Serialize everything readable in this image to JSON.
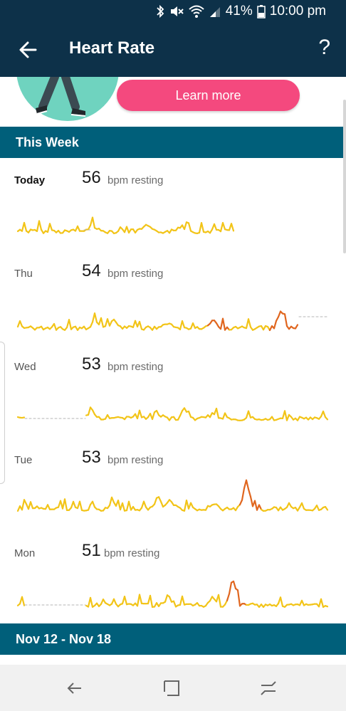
{
  "status_bar": {
    "battery": "41%",
    "time": "10:00 pm",
    "icons": [
      "bluetooth-icon",
      "mute-icon",
      "wifi-icon",
      "signal-icon",
      "battery-icon"
    ]
  },
  "app_bar": {
    "title": "Heart Rate",
    "help": "?"
  },
  "promo": {
    "button_label": "Learn more"
  },
  "this_week": {
    "header": "This Week",
    "days": [
      {
        "label": "Today",
        "bpm": "56",
        "unit": "bpm resting"
      },
      {
        "label": "Thu",
        "bpm": "54",
        "unit": "bpm resting"
      },
      {
        "label": "Wed",
        "bpm": "53",
        "unit": "bpm resting"
      },
      {
        "label": "Tue",
        "bpm": "53",
        "unit": "bpm resting"
      },
      {
        "label": "Mon",
        "bpm": "51",
        "unit": "bpm resting"
      }
    ]
  },
  "next_section": {
    "header": "Nov 12 - Nov 18"
  },
  "colors": {
    "header_bg": "#0d3149",
    "section_bg": "#005f7a",
    "accent_pink": "#f4497e",
    "spark_yellow": "#f2c418",
    "spark_orange": "#e0661f"
  }
}
